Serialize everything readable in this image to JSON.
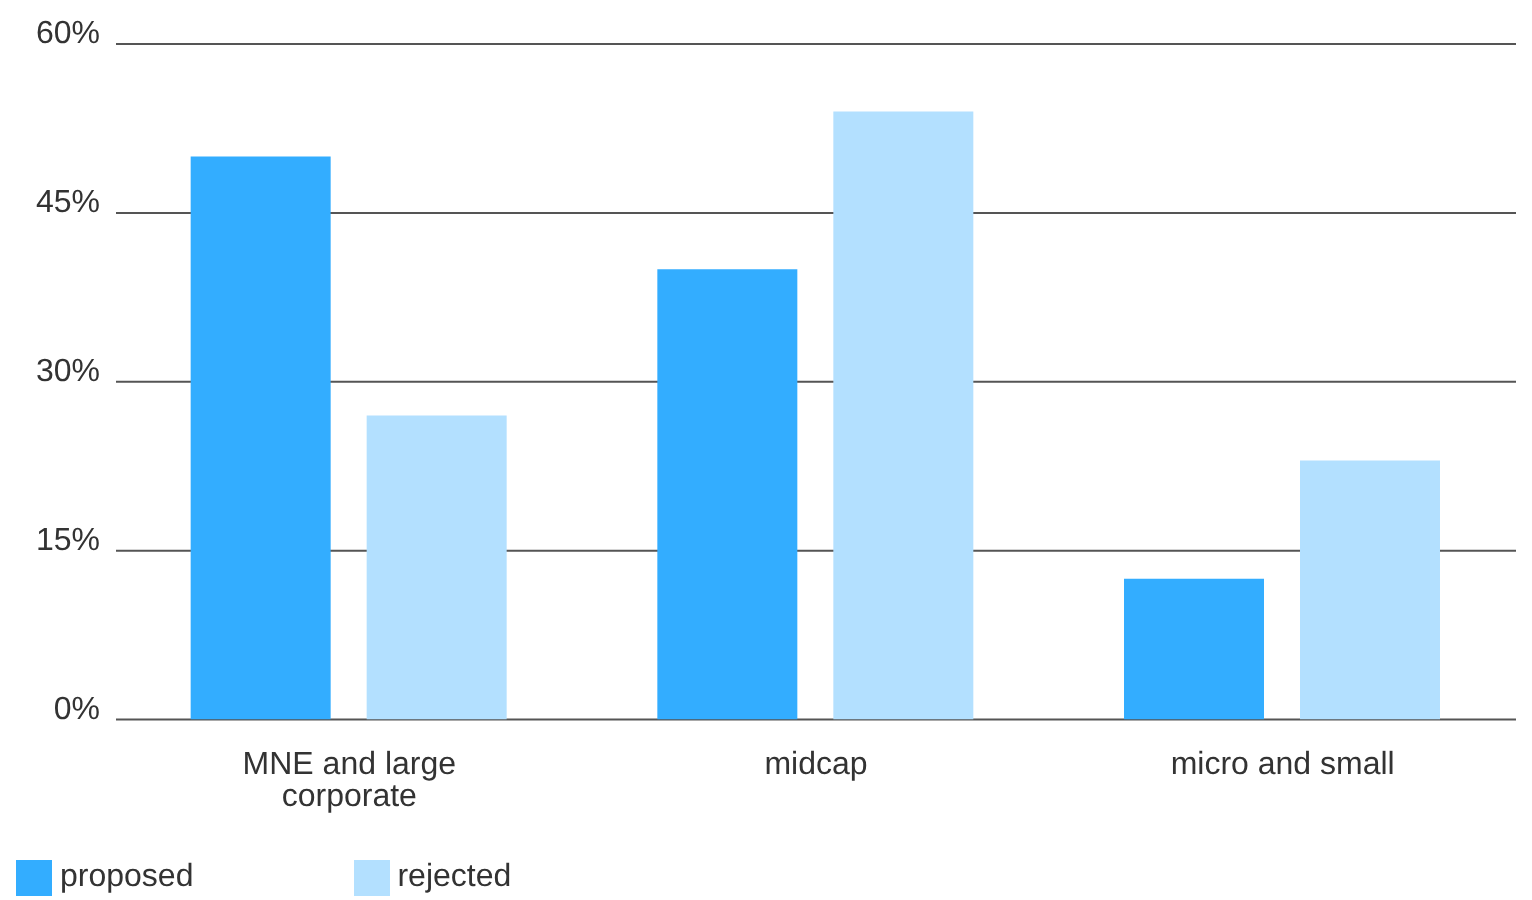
{
  "chart_data": {
    "type": "bar",
    "categories": [
      "MNE and large corporate",
      "midcap",
      "micro and small"
    ],
    "series": [
      {
        "name": "proposed",
        "color": "#33adff",
        "values": [
          50,
          40,
          12.5
        ]
      },
      {
        "name": "rejected",
        "color": "#b3e0ff",
        "values": [
          27,
          54,
          23
        ]
      }
    ],
    "ylim": [
      0,
      60
    ],
    "yticks": [
      {
        "value": 0,
        "label": "0%"
      },
      {
        "value": 15,
        "label": "15%"
      },
      {
        "value": 30,
        "label": "30%"
      },
      {
        "value": 45,
        "label": "45%"
      },
      {
        "value": 60,
        "label": "60%"
      }
    ],
    "grid": "y",
    "legend": "bottom left"
  }
}
